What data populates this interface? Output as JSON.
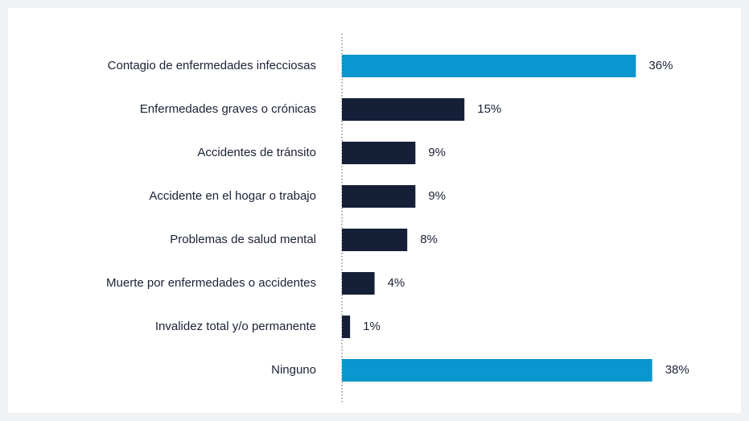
{
  "chart_data": {
    "type": "bar",
    "orientation": "horizontal",
    "categories": [
      "Contagio de enfermedades infecciosas",
      "Enfermedades graves o crónicas",
      "Accidentes de tránsito",
      "Accidente en el hogar o trabajo",
      "Problemas de salud mental",
      "Muerte por enfermedades o accidentes",
      "Invalidez total y/o permanente",
      "Ninguno"
    ],
    "values": [
      36,
      15,
      9,
      9,
      8,
      4,
      1,
      38
    ],
    "value_labels": [
      "36%",
      "15%",
      "9%",
      "9%",
      "8%",
      "4%",
      "1%",
      "38%"
    ],
    "colors": [
      "#0a96cf",
      "#151f38",
      "#151f38",
      "#151f38",
      "#151f38",
      "#151f38",
      "#151f38",
      "#0a96cf"
    ]
  }
}
